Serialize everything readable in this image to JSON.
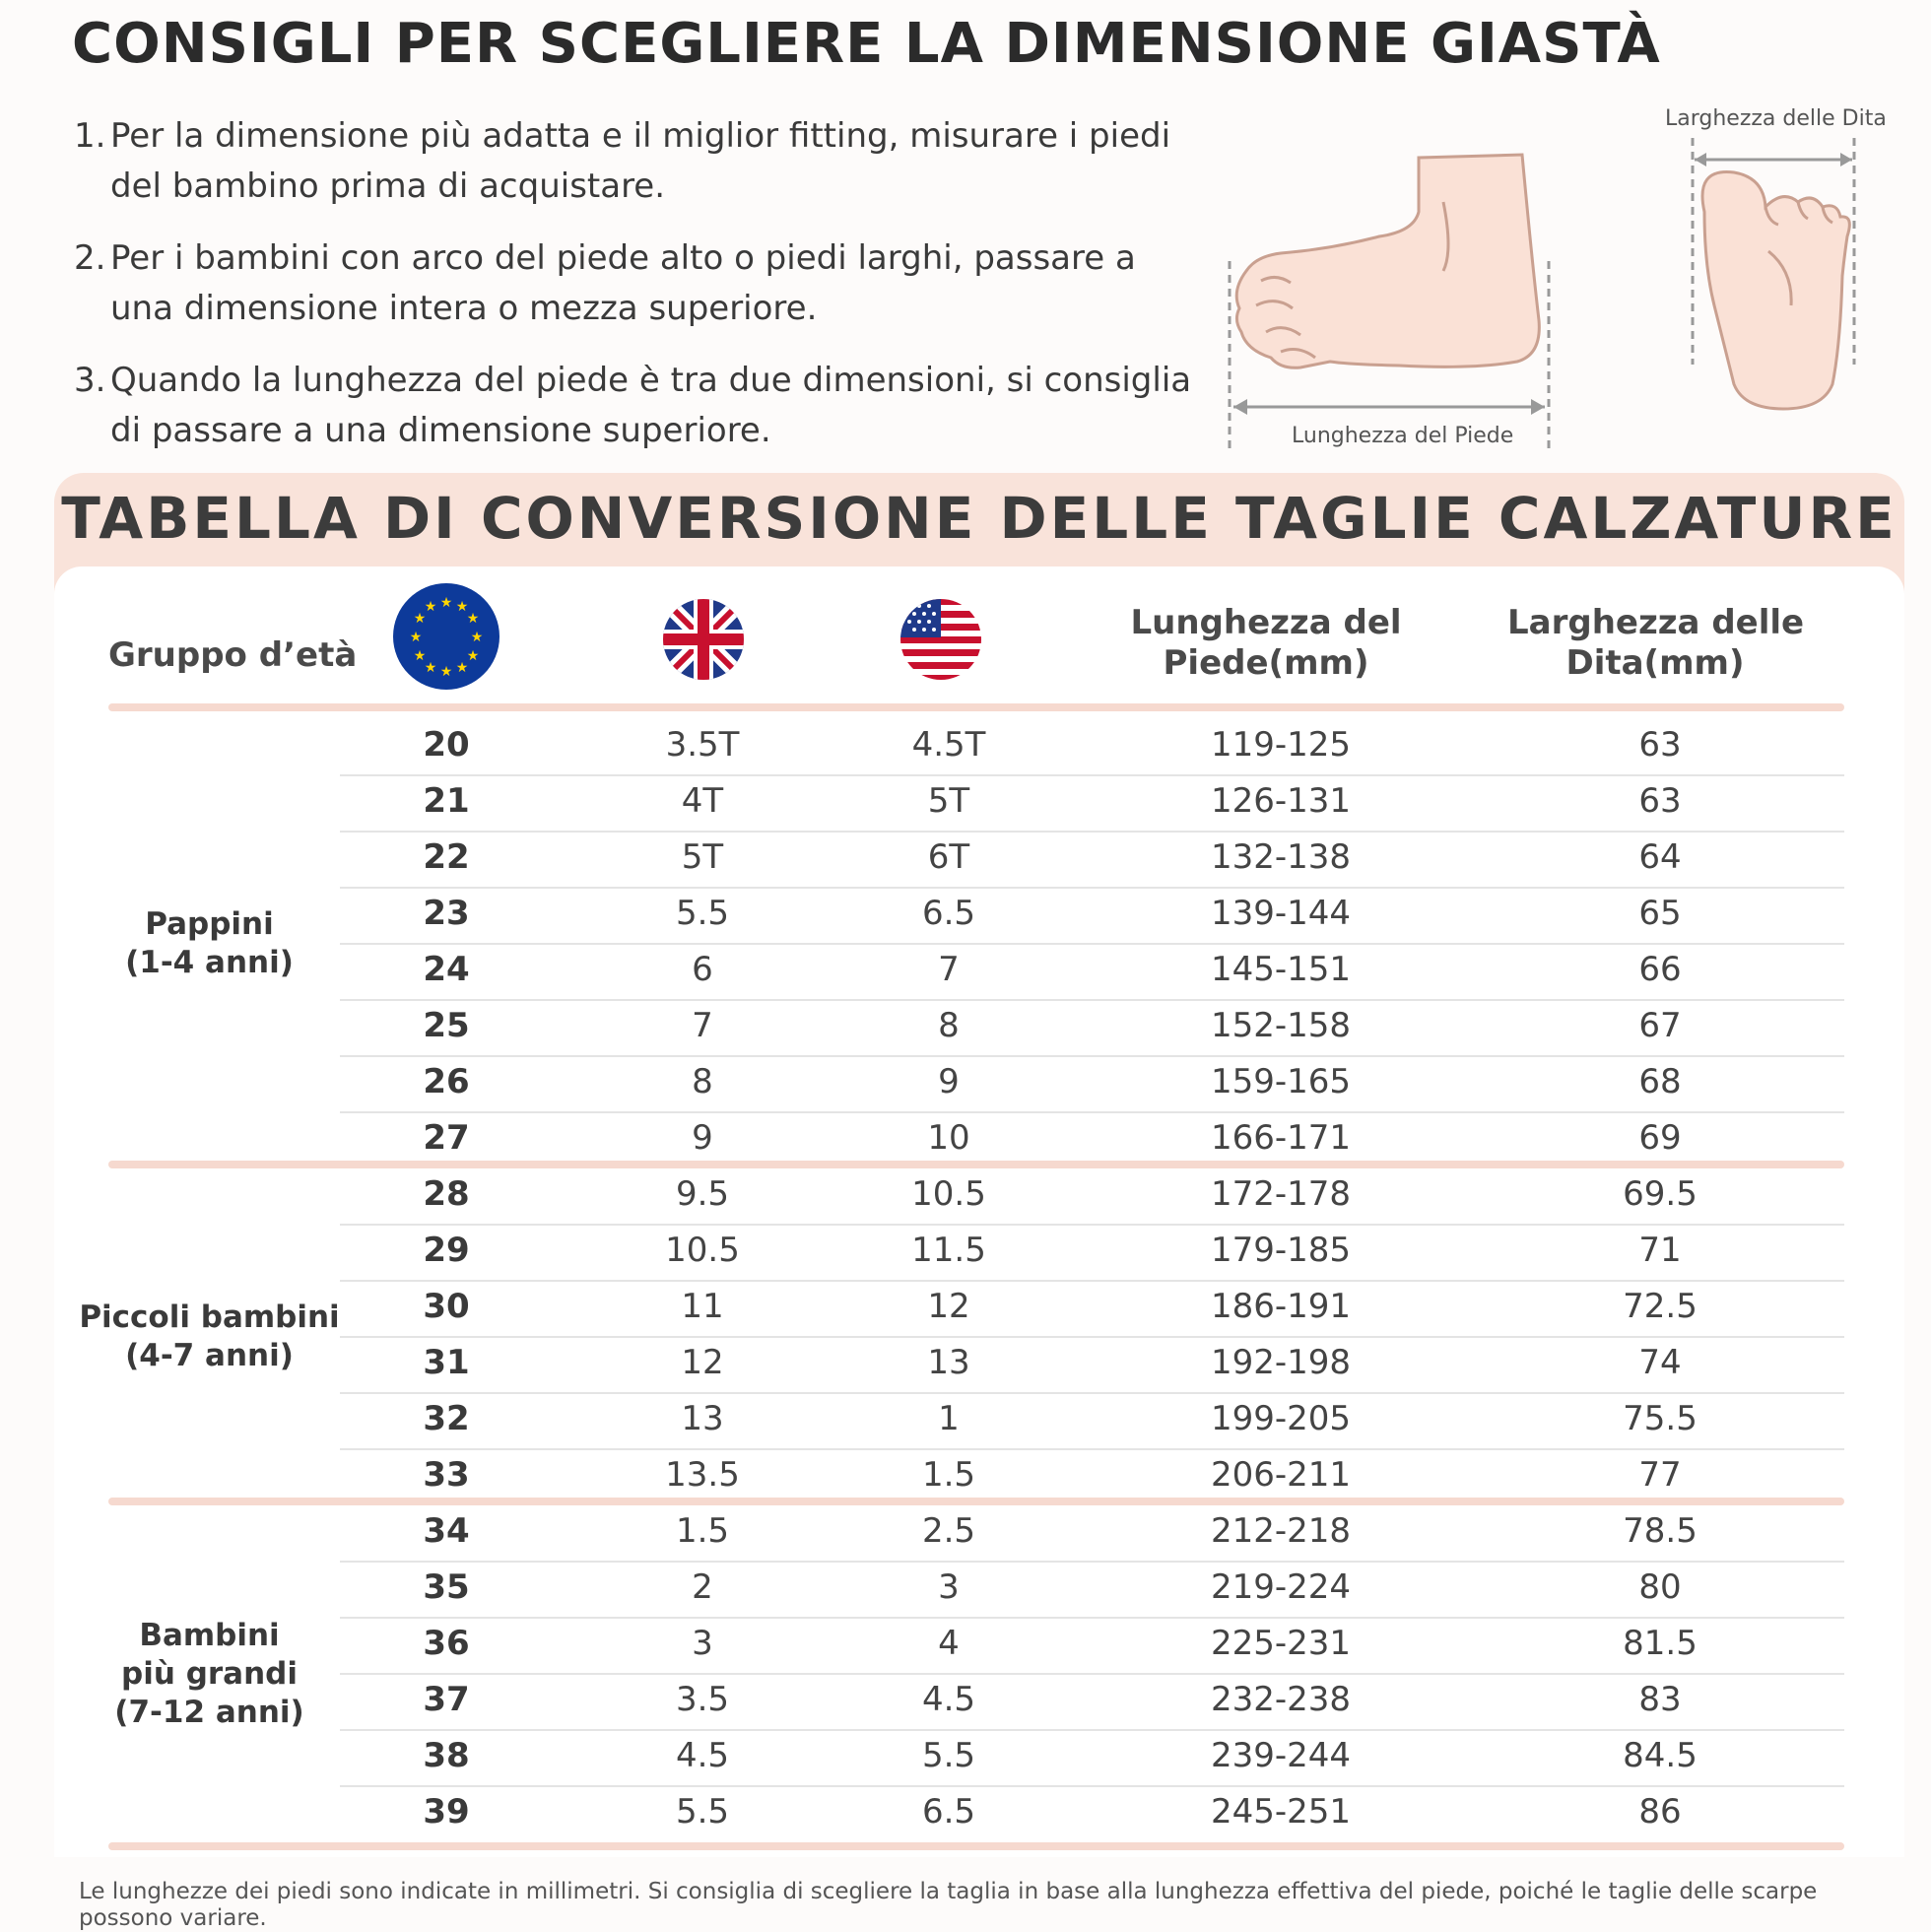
{
  "title": "CONSIGLI PER SCEGLIERE LA DIMENSIONE GIASTÀ",
  "tips": [
    {
      "num": "1.",
      "text": "Per la dimensione più adatta e il miglior fitting, misurare i piedi del bambino prima di acquistare."
    },
    {
      "num": "2.",
      "text": "Per i bambini con arco del piede alto o piedi larghi, passare a una dimensione intera o mezza superiore."
    },
    {
      "num": "3.",
      "text": "Quando la lunghezza del piede è tra due dimensioni, si consiglia di passare a una dimensione superiore."
    }
  ],
  "diagram": {
    "foot_length_label": "Lunghezza del Piede",
    "toe_width_label": "Larghezza delle Dita"
  },
  "chart_title": "TABELLA DI CONVERSIONE DELLE TAGLIE CALZATURE",
  "headers": {
    "age_group": "Gruppo d’età",
    "eu_flag": "eu-flag-icon",
    "uk_flag": "uk-flag-icon",
    "us_flag": "us-flag-icon",
    "foot_length": "Lunghezza del Piede(mm)",
    "toe_width": "Larghezza delle Dita(mm)"
  },
  "groups": [
    {
      "label": "Pappini\n(1-4 anni)",
      "start": 0,
      "count": 8
    },
    {
      "label": "Piccoli bambini\n(4-7 anni)",
      "start": 8,
      "count": 6
    },
    {
      "label": "Bambini\npiù grandi\n(7-12 anni)",
      "start": 14,
      "count": 6
    }
  ],
  "rows": [
    {
      "eu": "20",
      "uk": "3.5T",
      "us": "4.5T",
      "length": "119-125",
      "width": "63"
    },
    {
      "eu": "21",
      "uk": "4T",
      "us": "5T",
      "length": "126-131",
      "width": "63"
    },
    {
      "eu": "22",
      "uk": "5T",
      "us": "6T",
      "length": "132-138",
      "width": "64"
    },
    {
      "eu": "23",
      "uk": "5.5",
      "us": "6.5",
      "length": "139-144",
      "width": "65"
    },
    {
      "eu": "24",
      "uk": "6",
      "us": "7",
      "length": "145-151",
      "width": "66"
    },
    {
      "eu": "25",
      "uk": "7",
      "us": "8",
      "length": "152-158",
      "width": "67"
    },
    {
      "eu": "26",
      "uk": "8",
      "us": "9",
      "length": "159-165",
      "width": "68"
    },
    {
      "eu": "27",
      "uk": "9",
      "us": "10",
      "length": "166-171",
      "width": "69"
    },
    {
      "eu": "28",
      "uk": "9.5",
      "us": "10.5",
      "length": "172-178",
      "width": "69.5"
    },
    {
      "eu": "29",
      "uk": "10.5",
      "us": "11.5",
      "length": "179-185",
      "width": "71"
    },
    {
      "eu": "30",
      "uk": "11",
      "us": "12",
      "length": "186-191",
      "width": "72.5"
    },
    {
      "eu": "31",
      "uk": "12",
      "us": "13",
      "length": "192-198",
      "width": "74"
    },
    {
      "eu": "32",
      "uk": "13",
      "us": "1",
      "length": "199-205",
      "width": "75.5"
    },
    {
      "eu": "33",
      "uk": "13.5",
      "us": "1.5",
      "length": "206-211",
      "width": "77"
    },
    {
      "eu": "34",
      "uk": "1.5",
      "us": "2.5",
      "length": "212-218",
      "width": "78.5"
    },
    {
      "eu": "35",
      "uk": "2",
      "us": "3",
      "length": "219-224",
      "width": "80"
    },
    {
      "eu": "36",
      "uk": "3",
      "us": "4",
      "length": "225-231",
      "width": "81.5"
    },
    {
      "eu": "37",
      "uk": "3.5",
      "us": "4.5",
      "length": "232-238",
      "width": "83"
    },
    {
      "eu": "38",
      "uk": "4.5",
      "us": "5.5",
      "length": "239-244",
      "width": "84.5"
    },
    {
      "eu": "39",
      "uk": "5.5",
      "us": "6.5",
      "length": "245-251",
      "width": "86"
    }
  ],
  "footnote": "Le lunghezze dei piedi sono indicate in millimetri. Si consiglia di scegliere la taglia in base alla lunghezza effettiva del piede,  poiché le taglie delle scarpe possono variare.",
  "colors": {
    "accent": "#f9e3da",
    "rule": "#f6d9cf",
    "skin": "#f9e0d4",
    "outline": "#c9a090"
  }
}
